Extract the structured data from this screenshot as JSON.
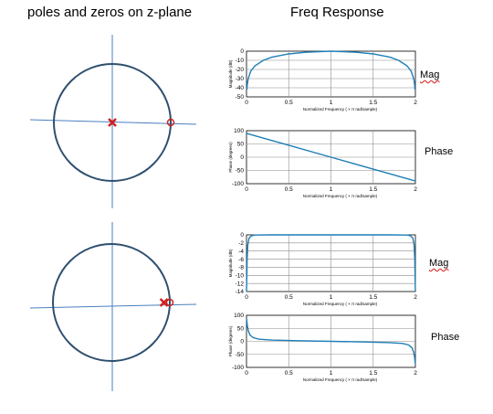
{
  "titles": {
    "left": "poles and zeros on z-plane",
    "right": "Freq Response"
  },
  "side_labels": {
    "mag1": "Mag",
    "phase1": "Phase",
    "mag2": "Mag",
    "phase2": "Phase"
  },
  "colors": {
    "circle": "#2f4f6f",
    "axes": "#4a7fc0",
    "pole": "#d22020",
    "zero": "#d22020",
    "curve": "#1f7fb8",
    "grid": "#8c8c8c"
  },
  "chart_data": [
    {
      "type": "scatter",
      "title": "poles and zeros on z-plane",
      "poles": [
        {
          "re": 0.0,
          "im": 0.0
        }
      ],
      "zeros": [
        {
          "re": 1.0,
          "im": 0.0
        }
      ]
    },
    {
      "type": "line",
      "xlabel": "Normalized Frequency (  × π rad/sample)",
      "ylabel": "Magnitude (dB)",
      "xlim": [
        0,
        2
      ],
      "ylim": [
        -50,
        0
      ],
      "xticks": [
        "0",
        "0.5",
        "1",
        "1.5",
        "2"
      ],
      "yticks": [
        "0",
        "-10",
        "-20",
        "-30",
        "-40",
        "-50"
      ],
      "grid": true,
      "x": [
        0.005,
        0.01,
        0.02,
        0.05,
        0.1,
        0.2,
        0.3,
        0.5,
        0.7,
        1.0,
        1.3,
        1.5,
        1.7,
        1.8,
        1.9,
        1.95,
        1.98,
        1.99,
        1.995
      ],
      "y": [
        -42,
        -36,
        -30,
        -22,
        -16,
        -10,
        -6.6,
        -3,
        -1.2,
        0,
        -1.2,
        -3,
        -6.6,
        -10,
        -16,
        -22,
        -30,
        -36,
        -42
      ]
    },
    {
      "type": "line",
      "xlabel": "Normalized Frequency (  × π rad/sample)",
      "ylabel": "Phase (degrees)",
      "xlim": [
        0,
        2
      ],
      "ylim": [
        -100,
        100
      ],
      "xticks": [
        "0",
        "0.5",
        "1",
        "1.5",
        "2"
      ],
      "yticks": [
        "100",
        "50",
        "0",
        "-50",
        "-100"
      ],
      "grid": true,
      "x": [
        0,
        0.5,
        1,
        1.5,
        2
      ],
      "y": [
        90,
        45,
        0,
        -45,
        -90
      ]
    },
    {
      "type": "scatter",
      "title": "poles and zeros on z-plane",
      "poles": [
        {
          "re": 0.9,
          "im": 0.0
        }
      ],
      "zeros": [
        {
          "re": 1.0,
          "im": 0.0
        }
      ]
    },
    {
      "type": "line",
      "xlabel": "Normalized Frequency (  × π rad/sample)",
      "ylabel": "Magnitude (dB)",
      "xlim": [
        0,
        2
      ],
      "ylim": [
        -14,
        0
      ],
      "xticks": [
        "0",
        "0.5",
        "1",
        "1.5",
        "2"
      ],
      "yticks": [
        "0",
        "-2",
        "-4",
        "-6",
        "-8",
        "-10",
        "-12",
        "-14"
      ],
      "grid": true,
      "x": [
        0.0,
        0.004,
        0.008,
        0.015,
        0.03,
        0.06,
        0.1,
        0.3,
        1.0,
        1.7,
        1.9,
        1.94,
        1.97,
        1.985,
        1.992,
        1.996,
        2.0
      ],
      "y": [
        -14,
        -10,
        -6,
        -2.5,
        -0.8,
        -0.2,
        -0.05,
        0,
        0,
        0,
        -0.05,
        -0.2,
        -0.8,
        -2.5,
        -6,
        -10,
        -14
      ]
    },
    {
      "type": "line",
      "xlabel": "Normalized Frequency (  × π rad/sample)",
      "ylabel": "Phase (degrees)",
      "xlim": [
        0,
        2
      ],
      "ylim": [
        -100,
        100
      ],
      "xticks": [
        "0",
        "0.5",
        "1",
        "1.5",
        "2"
      ],
      "yticks": [
        "100",
        "50",
        "0",
        "-50",
        "-100"
      ],
      "grid": true,
      "x": [
        0.0,
        0.005,
        0.01,
        0.02,
        0.04,
        0.08,
        0.15,
        0.3,
        0.6,
        1.0,
        1.4,
        1.7,
        1.85,
        1.92,
        1.96,
        1.98,
        1.99,
        1.995,
        2.0
      ],
      "y": [
        90,
        75,
        60,
        42,
        25,
        14,
        8,
        5,
        2.5,
        0,
        -2.5,
        -5,
        -8,
        -14,
        -25,
        -42,
        -60,
        -75,
        -90
      ]
    }
  ]
}
